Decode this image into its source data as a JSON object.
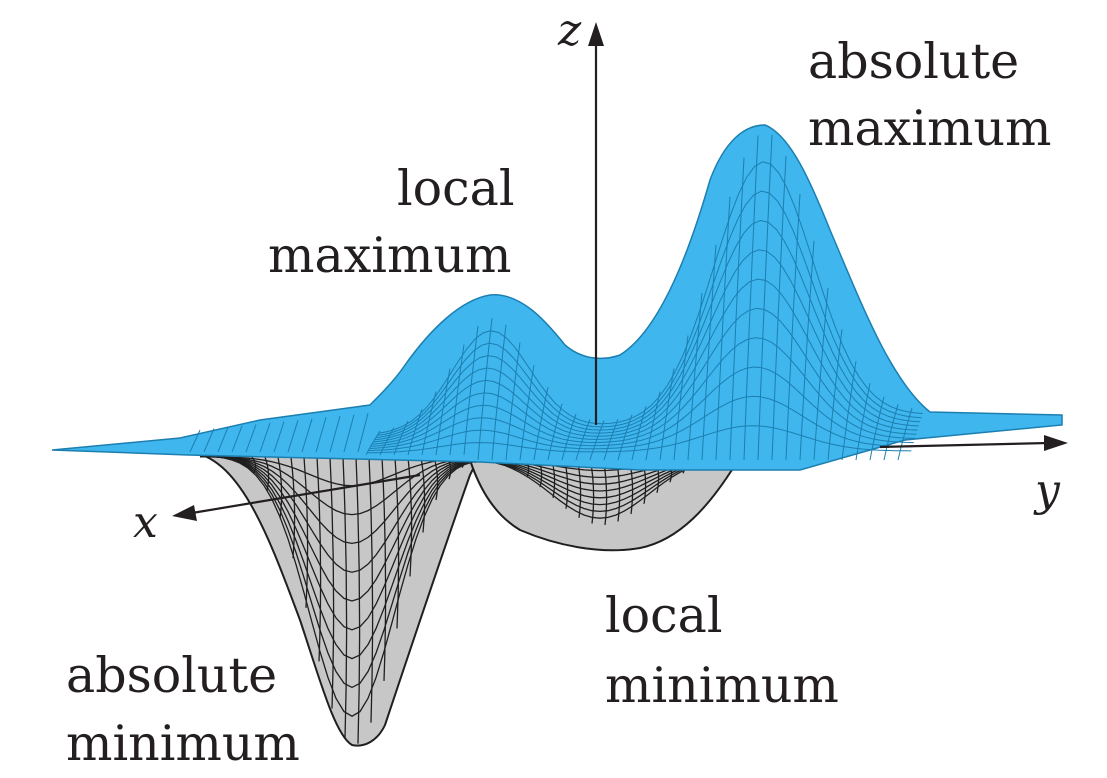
{
  "axes": {
    "x": "x",
    "y": "y",
    "z": "z"
  },
  "annotations": {
    "absolute_maximum": [
      "absolute",
      "maximum"
    ],
    "local_maximum": [
      "local",
      "maximum"
    ],
    "local_minimum": [
      "local",
      "minimum"
    ],
    "absolute_minimum": [
      "absolute",
      "minimum"
    ]
  },
  "colors": {
    "upper_surface": "#3fb6ee",
    "lower_surface": "#c7c7c7",
    "mesh_line_upper": "#1c7fb0",
    "mesh_line_lower": "#1f1f1f",
    "axis": "#231f20"
  }
}
